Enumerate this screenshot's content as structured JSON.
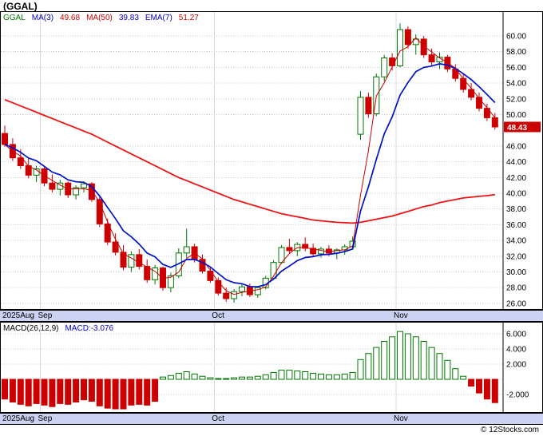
{
  "window": {
    "title": "(GGAL)",
    "footer": "© 12Stocks.com"
  },
  "main_chart": {
    "legend": [
      {
        "text": "GGAL",
        "color": "#007700"
      },
      {
        "text": "MA(3)",
        "color": "#0000cc"
      },
      {
        "text": "49.68",
        "color": "#cc0000"
      },
      {
        "text": "MA(50)",
        "color": "#cc0000"
      },
      {
        "text": "39.83",
        "color": "#0000cc"
      },
      {
        "text": "EMA(7)",
        "color": "#0000cc"
      },
      {
        "text": "51.27",
        "color": "#cc0000"
      }
    ],
    "y_ticks": [
      "60.00",
      "58.00",
      "56.00",
      "54.00",
      "52.00",
      "50.00",
      "46.00",
      "44.00",
      "42.00",
      "40.00",
      "38.00",
      "36.00",
      "34.00",
      "32.00",
      "30.00",
      "28.00",
      "26.00"
    ],
    "price_label": {
      "value": "48.43",
      "bg": "#cc0000",
      "fg": "#ffffff"
    },
    "x_axis": [
      {
        "label": "2025Aug",
        "index": 0
      },
      {
        "label": "Sep",
        "index": 5
      },
      {
        "label": "Oct",
        "index": 27
      },
      {
        "label": "Nov",
        "index": 50
      }
    ]
  },
  "macd_chart": {
    "legend": [
      {
        "text": "MACD(26,12,9)",
        "color": "#000000"
      },
      {
        "text": "MACD:-3.076",
        "color": "#0000cc"
      }
    ],
    "y_ticks": [
      "6.000",
      "4.000",
      "2.000",
      "-2.000"
    ],
    "current_value": -3.076
  },
  "chart_data": {
    "type": "candlestick",
    "symbol": "GGAL",
    "title": "(GGAL)",
    "x_labels": [
      "2025Aug",
      "Sep",
      "Oct",
      "Nov"
    ],
    "price_range": [
      25.5,
      63.0
    ],
    "grid": true,
    "legend_position": "top-left",
    "current_price": 48.43,
    "indicators": {
      "ma3": 49.68,
      "ma50": 39.83,
      "ema7": 51.27,
      "macd": -3.076
    },
    "colors": {
      "up": "#007700",
      "down": "#cc0000",
      "ma3": "#cc0000",
      "ma50": "#ee1111",
      "ema7": "#0011cc"
    },
    "candles": [
      [
        47.6,
        48.6,
        45.9,
        46.2
      ],
      [
        46.2,
        47.0,
        44.1,
        44.5
      ],
      [
        44.5,
        45.6,
        43.1,
        43.5
      ],
      [
        43.5,
        44.4,
        41.9,
        42.3
      ],
      [
        42.3,
        43.5,
        41.4,
        43.1
      ],
      [
        43.1,
        43.3,
        40.9,
        41.3
      ],
      [
        41.3,
        42.4,
        40.1,
        40.5
      ],
      [
        40.5,
        41.7,
        39.7,
        41.3
      ],
      [
        41.3,
        41.5,
        39.4,
        39.8
      ],
      [
        39.8,
        41.0,
        39.2,
        40.7
      ],
      [
        40.7,
        41.5,
        40.1,
        41.2
      ],
      [
        41.2,
        41.4,
        38.9,
        39.2
      ],
      [
        39.2,
        39.6,
        35.7,
        36.1
      ],
      [
        36.1,
        36.8,
        33.4,
        33.8
      ],
      [
        33.8,
        34.9,
        32.1,
        32.5
      ],
      [
        32.5,
        33.4,
        30.2,
        30.6
      ],
      [
        30.6,
        32.6,
        30.0,
        32.2
      ],
      [
        32.2,
        32.9,
        30.3,
        30.7
      ],
      [
        30.7,
        31.6,
        28.6,
        29.0
      ],
      [
        29.0,
        30.9,
        28.4,
        30.5
      ],
      [
        30.5,
        30.7,
        27.6,
        28.0
      ],
      [
        28.0,
        29.9,
        27.4,
        29.5
      ],
      [
        29.5,
        33.0,
        29.2,
        32.4
      ],
      [
        32.4,
        35.5,
        31.8,
        33.2
      ],
      [
        33.2,
        33.6,
        31.2,
        31.6
      ],
      [
        31.6,
        32.2,
        29.8,
        30.1
      ],
      [
        30.1,
        30.6,
        28.6,
        28.9
      ],
      [
        28.9,
        29.3,
        27.0,
        27.3
      ],
      [
        27.3,
        28.0,
        26.2,
        26.6
      ],
      [
        26.6,
        27.8,
        26.1,
        27.5
      ],
      [
        27.5,
        28.4,
        26.9,
        28.1
      ],
      [
        28.1,
        28.5,
        26.8,
        27.1
      ],
      [
        27.1,
        28.2,
        26.7,
        28.0
      ],
      [
        28.0,
        29.5,
        27.8,
        29.2
      ],
      [
        29.2,
        31.5,
        29.0,
        31.2
      ],
      [
        31.2,
        33.4,
        31.0,
        33.1
      ],
      [
        33.1,
        34.2,
        32.3,
        32.7
      ],
      [
        32.7,
        33.8,
        32.0,
        33.5
      ],
      [
        33.5,
        34.4,
        32.6,
        33.0
      ],
      [
        33.0,
        33.6,
        31.9,
        32.3
      ],
      [
        32.3,
        33.2,
        31.8,
        32.9
      ],
      [
        32.9,
        33.4,
        32.0,
        32.4
      ],
      [
        32.4,
        33.0,
        31.6,
        32.8
      ],
      [
        32.8,
        33.5,
        32.2,
        33.2
      ],
      [
        33.2,
        34.5,
        32.8,
        33.9
      ],
      [
        47.5,
        53.0,
        46.8,
        52.2
      ],
      [
        52.2,
        52.8,
        49.6,
        50.1
      ],
      [
        50.1,
        55.2,
        49.8,
        54.8
      ],
      [
        54.8,
        57.6,
        54.2,
        57.2
      ],
      [
        57.2,
        57.8,
        55.6,
        56.2
      ],
      [
        56.2,
        61.6,
        56.0,
        60.8
      ],
      [
        60.8,
        61.2,
        58.4,
        58.9
      ],
      [
        58.9,
        60.2,
        57.6,
        59.6
      ],
      [
        59.6,
        60.0,
        57.2,
        57.6
      ],
      [
        57.6,
        58.4,
        56.2,
        56.7
      ],
      [
        56.7,
        57.9,
        55.8,
        57.3
      ],
      [
        57.3,
        57.6,
        55.4,
        55.8
      ],
      [
        55.8,
        56.4,
        54.2,
        54.6
      ],
      [
        54.6,
        55.2,
        52.8,
        53.2
      ],
      [
        53.2,
        54.0,
        51.8,
        52.2
      ],
      [
        52.2,
        52.8,
        50.4,
        50.8
      ],
      [
        50.8,
        51.4,
        49.2,
        49.6
      ],
      [
        49.6,
        50.2,
        48.1,
        48.43
      ]
    ],
    "ma50": [
      51.9,
      51.5,
      51.1,
      50.7,
      50.3,
      49.9,
      49.5,
      49.1,
      48.7,
      48.3,
      47.9,
      47.5,
      47.0,
      46.5,
      46.0,
      45.5,
      45.0,
      44.5,
      44.0,
      43.5,
      43.0,
      42.5,
      42.0,
      41.6,
      41.2,
      40.8,
      40.4,
      40.0,
      39.6,
      39.2,
      38.9,
      38.6,
      38.3,
      38.0,
      37.7,
      37.4,
      37.2,
      37.0,
      36.8,
      36.6,
      36.5,
      36.4,
      36.3,
      36.25,
      36.2,
      36.3,
      36.5,
      36.7,
      36.9,
      37.1,
      37.4,
      37.7,
      38.0,
      38.3,
      38.5,
      38.8,
      39.0,
      39.2,
      39.4,
      39.5,
      39.6,
      39.7,
      39.83
    ],
    "macd_histogram": [
      -2.6,
      -3.0,
      -3.3,
      -3.5,
      -3.2,
      -3.4,
      -3.6,
      -3.2,
      -3.3,
      -3.0,
      -2.7,
      -2.9,
      -3.5,
      -3.8,
      -3.9,
      -3.9,
      -3.4,
      -3.3,
      -3.4,
      -2.9,
      0.3,
      0.5,
      0.8,
      1.0,
      0.7,
      0.4,
      0.2,
      0.1,
      0.1,
      0.2,
      0.3,
      0.3,
      0.4,
      0.6,
      0.9,
      1.2,
      1.2,
      1.1,
      1.0,
      0.8,
      0.7,
      0.6,
      0.6,
      0.7,
      0.9,
      2.6,
      3.4,
      4.2,
      5.0,
      5.6,
      6.3,
      6.0,
      5.6,
      5.0,
      4.2,
      3.4,
      2.5,
      1.4,
      0.4,
      -0.9,
      -1.8,
      -2.6,
      -3.076
    ],
    "macd_range": [
      -4.2,
      7.2
    ]
  }
}
